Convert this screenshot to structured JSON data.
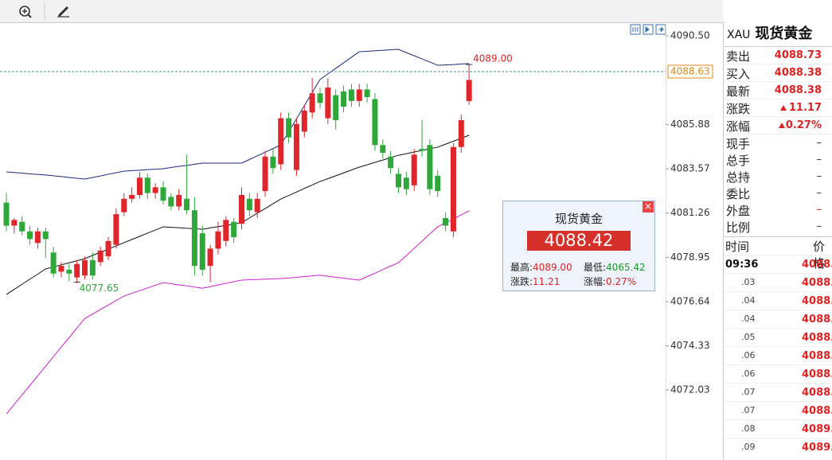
{
  "chart_data": {
    "type": "candlestick",
    "ylim": [
      4068.38,
      4091.12
    ],
    "yticks": [
      {
        "value": 4090.5,
        "label": "4090.50"
      },
      4085.88,
      4083.57,
      4081.26,
      4078.95,
      4076.64,
      4074.33,
      4072.03
    ],
    "up_color": "#e0262a",
    "down_color": "#2fa83a",
    "current_price": 4088.63,
    "current_price_color": "#e08a1a",
    "high_label": {
      "value": 4089,
      "label": "4089.00"
    },
    "low_label": 4077.65,
    "candles": [
      {
        "open": 4081.8,
        "high": 4082.3,
        "low": 4080.3,
        "close": 4080.6
      },
      {
        "open": 4080.6,
        "high": 4081.0,
        "low": 4080.2,
        "close": 4080.9
      },
      {
        "open": 4080.8,
        "high": 4081.1,
        "low": 4080.1,
        "close": 4080.3
      },
      {
        "open": 4080.3,
        "high": 4080.6,
        "low": 4079.6,
        "close": 4079.9
      },
      {
        "open": 4079.7,
        "high": 4080.5,
        "low": 4079.4,
        "close": 4080.3
      },
      {
        "open": 4080.3,
        "high": 4080.5,
        "low": 4078.9,
        "close": 4079.9
      },
      {
        "open": 4079.2,
        "high": 4079.5,
        "low": 4077.9,
        "close": 4078.1
      },
      {
        "open": 4078.2,
        "high": 4078.7,
        "low": 4077.9,
        "close": 4078.5
      },
      {
        "open": 4078.3,
        "high": 4078.6,
        "low": 4077.7,
        "close": 4078.1
      },
      {
        "open": 4077.9,
        "high": 4078.8,
        "low": 4077.6,
        "close": 4078.6
      },
      {
        "open": 4078.0,
        "high": 4079.0,
        "low": 4077.8,
        "close": 4078.8
      },
      {
        "open": 4078.8,
        "high": 4079.2,
        "low": 4077.8,
        "close": 4078.0
      },
      {
        "open": 4078.7,
        "high": 4079.5,
        "low": 4078.5,
        "close": 4079.3
      },
      {
        "open": 4079.0,
        "high": 4080.0,
        "low": 4078.8,
        "close": 4079.8
      },
      {
        "open": 4079.6,
        "high": 4081.5,
        "low": 4079.4,
        "close": 4081.2
      },
      {
        "open": 4081.3,
        "high": 4082.3,
        "low": 4081.1,
        "close": 4082.0
      },
      {
        "open": 4082.0,
        "high": 4082.6,
        "low": 4081.8,
        "close": 4082.2
      },
      {
        "open": 4082.2,
        "high": 4083.4,
        "low": 4082.0,
        "close": 4083.1
      },
      {
        "open": 4083.1,
        "high": 4083.3,
        "low": 4082.0,
        "close": 4082.3
      },
      {
        "open": 4082.3,
        "high": 4082.8,
        "low": 4082.0,
        "close": 4082.6
      },
      {
        "open": 4082.6,
        "high": 4082.9,
        "low": 4081.7,
        "close": 4081.9
      },
      {
        "open": 4082.1,
        "high": 4082.3,
        "low": 4081.4,
        "close": 4081.6
      },
      {
        "open": 4081.6,
        "high": 4082.5,
        "low": 4081.4,
        "close": 4082.2
      },
      {
        "open": 4082.0,
        "high": 4084.3,
        "low": 4081.2,
        "close": 4081.4
      },
      {
        "open": 4081.4,
        "high": 4082.1,
        "low": 4078.0,
        "close": 4078.5
      },
      {
        "open": 4080.2,
        "high": 4080.6,
        "low": 4078.0,
        "close": 4078.3
      },
      {
        "open": 4078.5,
        "high": 4079.6,
        "low": 4077.65,
        "close": 4079.4
      },
      {
        "open": 4079.4,
        "high": 4080.8,
        "low": 4079.1,
        "close": 4080.3
      },
      {
        "open": 4079.8,
        "high": 4081.1,
        "low": 4079.5,
        "close": 4080.9
      },
      {
        "open": 4080.8,
        "high": 4081.0,
        "low": 4079.7,
        "close": 4080.0
      },
      {
        "open": 4080.7,
        "high": 4082.6,
        "low": 4080.4,
        "close": 4082.2
      },
      {
        "open": 4082.0,
        "high": 4082.3,
        "low": 4081.1,
        "close": 4081.4
      },
      {
        "open": 4081.3,
        "high": 4082.3,
        "low": 4081.0,
        "close": 4082.0
      },
      {
        "open": 4082.4,
        "high": 4084.5,
        "low": 4082.1,
        "close": 4084.2
      },
      {
        "open": 4084.2,
        "high": 4084.6,
        "low": 4083.3,
        "close": 4083.6
      },
      {
        "open": 4083.8,
        "high": 4086.5,
        "low": 4083.5,
        "close": 4086.2
      },
      {
        "open": 4086.2,
        "high": 4086.5,
        "low": 4084.9,
        "close": 4085.2
      },
      {
        "open": 4083.5,
        "high": 4086.2,
        "low": 4083.2,
        "close": 4085.9
      },
      {
        "open": 4085.5,
        "high": 4086.9,
        "low": 4085.2,
        "close": 4086.6
      },
      {
        "open": 4086.5,
        "high": 4088.3,
        "low": 4086.2,
        "close": 4087.5
      },
      {
        "open": 4087.5,
        "high": 4087.8,
        "low": 4086.7,
        "close": 4087.0
      },
      {
        "open": 4086.2,
        "high": 4088.3,
        "low": 4085.9,
        "close": 4087.8
      },
      {
        "open": 4087.4,
        "high": 4087.7,
        "low": 4085.6,
        "close": 4086.1
      },
      {
        "open": 4087.6,
        "high": 4087.9,
        "low": 4086.5,
        "close": 4086.8
      },
      {
        "open": 4087.7,
        "high": 4088.0,
        "low": 4086.8,
        "close": 4087.1
      },
      {
        "open": 4087.1,
        "high": 4088.0,
        "low": 4086.8,
        "close": 4087.7
      },
      {
        "open": 4087.7,
        "high": 4088.0,
        "low": 4087.0,
        "close": 4087.3
      },
      {
        "open": 4087.2,
        "high": 4087.5,
        "low": 4084.5,
        "close": 4084.8
      },
      {
        "open": 4084.8,
        "high": 4085.1,
        "low": 4084.1,
        "close": 4084.4
      },
      {
        "open": 4084.2,
        "high": 4084.5,
        "low": 4083.3,
        "close": 4083.6
      },
      {
        "open": 4083.3,
        "high": 4083.6,
        "low": 4082.3,
        "close": 4082.6
      },
      {
        "open": 4083.1,
        "high": 4083.4,
        "low": 4082.2,
        "close": 4082.5
      },
      {
        "open": 4082.7,
        "high": 4084.6,
        "low": 4082.4,
        "close": 4084.3
      },
      {
        "open": 4084.6,
        "high": 4086.1,
        "low": 4084.2,
        "close": 4084.5
      },
      {
        "open": 4084.8,
        "high": 4085.1,
        "low": 4082.2,
        "close": 4082.5
      },
      {
        "open": 4083.2,
        "high": 4083.5,
        "low": 4082.1,
        "close": 4082.4
      },
      {
        "open": 4081.0,
        "high": 4081.3,
        "low": 4080.3,
        "close": 4080.6
      },
      {
        "open": 4080.3,
        "high": 4084.9,
        "low": 4080.0,
        "close": 4084.7
      },
      {
        "open": 4084.7,
        "high": 4086.4,
        "low": 4084.4,
        "close": 4086.1
      },
      {
        "open": 4087.1,
        "high": 4089.0,
        "low": 4086.9,
        "close": 4088.2
      }
    ],
    "bands": [
      {
        "color": "#1c2a80",
        "values": [
          4083.4,
          4083.37,
          4083.34,
          4083.3,
          4083.27,
          4083.24,
          4083.2,
          4083.16,
          4083.11,
          4083.07,
          4083.03,
          4083.11,
          4083.19,
          4083.28,
          4083.36,
          4083.44,
          4083.47,
          4083.49,
          4083.52,
          4083.54,
          4083.57,
          4083.63,
          4083.69,
          4083.74,
          4083.8,
          4083.86,
          4083.86,
          4083.86,
          4083.86,
          4083.86,
          4083.86,
          4084.05,
          4084.24,
          4084.43,
          4084.62,
          4084.81,
          4085.49,
          4086.17,
          4086.86,
          4087.54,
          4088.22,
          4088.51,
          4088.8,
          4089.09,
          4089.38,
          4089.67,
          4089.69,
          4089.72,
          4089.74,
          4089.77,
          4089.79,
          4089.62,
          4089.46,
          4089.29,
          4089.13,
          4088.96,
          4088.98,
          4089.0,
          4089.03,
          4089.05
        ]
      },
      {
        "color": "#111111",
        "values": [
          4077.01,
          4077.28,
          4077.54,
          4077.81,
          4078.07,
          4078.34,
          4078.45,
          4078.56,
          4078.66,
          4078.77,
          4078.88,
          4079.05,
          4079.21,
          4079.38,
          4079.54,
          4079.71,
          4079.88,
          4080.04,
          4080.21,
          4080.37,
          4080.54,
          4080.51,
          4080.49,
          4080.46,
          4080.44,
          4080.41,
          4080.48,
          4080.55,
          4080.61,
          4080.68,
          4080.75,
          4081.0,
          4081.25,
          4081.49,
          4081.74,
          4081.99,
          4082.17,
          4082.35,
          4082.54,
          4082.72,
          4082.9,
          4083.05,
          4083.2,
          4083.35,
          4083.5,
          4083.65,
          4083.77,
          4083.9,
          4084.02,
          4084.15,
          4084.27,
          4084.35,
          4084.44,
          4084.52,
          4084.61,
          4084.69,
          4084.85,
          4085.0,
          4085.16,
          4085.31
        ]
      },
      {
        "color": "#d020d0",
        "values": [
          4070.78,
          4071.28,
          4071.78,
          4072.27,
          4072.77,
          4073.27,
          4073.77,
          4074.27,
          4074.76,
          4075.26,
          4075.76,
          4075.99,
          4076.23,
          4076.46,
          4076.7,
          4076.93,
          4077.07,
          4077.21,
          4077.35,
          4077.49,
          4077.63,
          4077.57,
          4077.51,
          4077.46,
          4077.4,
          4077.34,
          4077.42,
          4077.51,
          4077.59,
          4077.68,
          4077.76,
          4077.78,
          4077.79,
          4077.81,
          4077.82,
          4077.84,
          4077.87,
          4077.91,
          4077.94,
          4077.98,
          4078.01,
          4077.96,
          4077.91,
          4077.86,
          4077.81,
          4077.76,
          4077.94,
          4078.12,
          4078.31,
          4078.49,
          4078.67,
          4079.04,
          4079.42,
          4079.79,
          4080.17,
          4080.54,
          4080.75,
          4080.95,
          4081.16,
          4081.37
        ]
      }
    ]
  },
  "popup": {
    "title": "现货黄金",
    "price": "4088.42",
    "fields": [
      {
        "label": "最高:",
        "value": "4089.00"
      },
      {
        "label": "最低:",
        "value": "4065.42"
      },
      {
        "label": "涨跌:",
        "value": "11.21"
      },
      {
        "label": "涨幅:",
        "value": "0.27%"
      }
    ]
  },
  "quote_panel": {
    "symbol": "XAU",
    "name": "现货黄金",
    "rows": [
      {
        "label": "卖出",
        "value": "4088.73"
      },
      {
        "label": "买入",
        "value": "4088.38"
      },
      {
        "label": "最新",
        "value": "4088.38"
      },
      {
        "label": "涨跌",
        "value": "11.17"
      },
      {
        "label": "涨幅",
        "value": "0.27%"
      },
      {
        "label": "现手",
        "value": "–"
      },
      {
        "label": "总手",
        "value": "–"
      },
      {
        "label": "总持",
        "value": "–"
      },
      {
        "label": "委比",
        "value": "–"
      },
      {
        "label": "外盘",
        "value": "–"
      },
      {
        "label": "比例",
        "value": "–"
      }
    ],
    "ticks_header": [
      "时间",
      "价格"
    ],
    "ticks": [
      [
        "09:36",
        "4088."
      ],
      [
        ".03",
        "4088."
      ],
      [
        ".04",
        "4088."
      ],
      [
        ".04",
        "4088."
      ],
      [
        ".05",
        "4088."
      ],
      [
        ".06",
        "4088."
      ],
      [
        ".06",
        "4088."
      ],
      [
        ".07",
        "4088."
      ],
      [
        ".07",
        "4088."
      ],
      [
        ".08",
        "4089."
      ],
      [
        ".09",
        "4089."
      ]
    ]
  }
}
